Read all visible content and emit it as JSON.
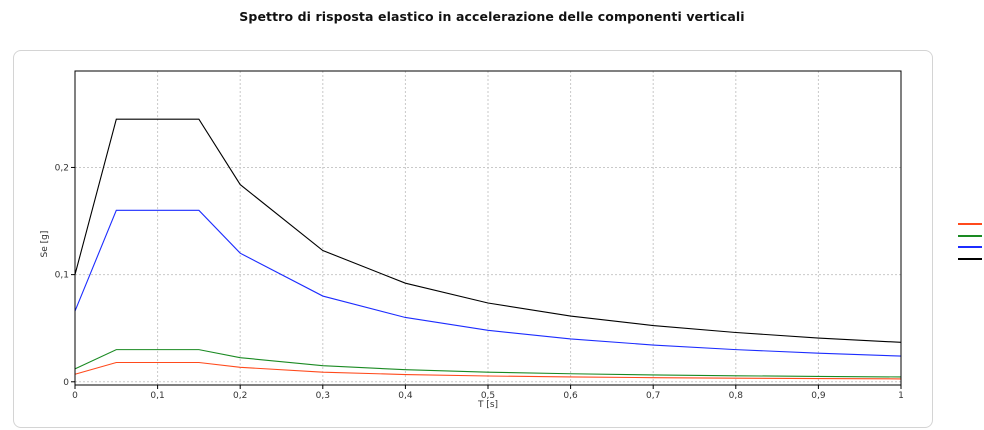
{
  "title": "Spettro di risposta elastico in accelerazione delle componenti verticali",
  "legend": [
    {
      "label": "",
      "color": "#ff4a1c"
    },
    {
      "label": "",
      "color": "#1a8a22"
    },
    {
      "label": "",
      "color": "#1c2cff"
    },
    {
      "label": "",
      "color": "#000000"
    }
  ],
  "chart_data": {
    "type": "line",
    "title": "Spettro di risposta elastico in accelerazione delle componenti verticali",
    "xlabel": "T [s]",
    "ylabel": "Se [g]",
    "xlim": [
      0,
      1
    ],
    "ylim": [
      -0.003,
      0.29
    ],
    "grid": true,
    "legend_position": "right",
    "x_ticks": [
      0,
      0.1,
      0.2,
      0.3,
      0.4,
      0.5,
      0.6,
      0.7,
      0.8,
      0.9,
      1
    ],
    "x_tick_labels": [
      "0",
      "0,1",
      "0,2",
      "0,3",
      "0,4",
      "0,5",
      "0,6",
      "0,7",
      "0,8",
      "0,9",
      "1"
    ],
    "y_ticks": [
      0,
      0.1,
      0.2
    ],
    "y_tick_labels": [
      "0",
      "0,1",
      "0,2"
    ],
    "series": [
      {
        "color": "#ff4a1c",
        "points": [
          [
            0,
            0.007
          ],
          [
            0.05,
            0.018
          ],
          [
            0.15,
            0.018
          ],
          [
            0.2,
            0.0135
          ],
          [
            0.3,
            0.009
          ],
          [
            0.4,
            0.00675
          ],
          [
            0.5,
            0.0054
          ],
          [
            0.6,
            0.0045
          ],
          [
            0.7,
            0.00386
          ],
          [
            0.8,
            0.0034
          ],
          [
            0.9,
            0.003
          ],
          [
            1.0,
            0.0027
          ]
        ]
      },
      {
        "color": "#1a8a22",
        "points": [
          [
            0,
            0.012
          ],
          [
            0.05,
            0.03
          ],
          [
            0.15,
            0.03
          ],
          [
            0.2,
            0.0225
          ],
          [
            0.3,
            0.015
          ],
          [
            0.4,
            0.01125
          ],
          [
            0.5,
            0.009
          ],
          [
            0.6,
            0.0075
          ],
          [
            0.7,
            0.0064
          ],
          [
            0.8,
            0.0056
          ],
          [
            0.9,
            0.005
          ],
          [
            1.0,
            0.0045
          ]
        ]
      },
      {
        "color": "#1c2cff",
        "points": [
          [
            0,
            0.066
          ],
          [
            0.05,
            0.16
          ],
          [
            0.15,
            0.16
          ],
          [
            0.2,
            0.12
          ],
          [
            0.3,
            0.08
          ],
          [
            0.4,
            0.06
          ],
          [
            0.5,
            0.048
          ],
          [
            0.6,
            0.04
          ],
          [
            0.7,
            0.0343
          ],
          [
            0.8,
            0.03
          ],
          [
            0.9,
            0.0267
          ],
          [
            1.0,
            0.024
          ]
        ]
      },
      {
        "color": "#000000",
        "points": [
          [
            0,
            0.1
          ],
          [
            0.05,
            0.245
          ],
          [
            0.15,
            0.245
          ],
          [
            0.2,
            0.184
          ],
          [
            0.3,
            0.1225
          ],
          [
            0.4,
            0.092
          ],
          [
            0.5,
            0.0735
          ],
          [
            0.6,
            0.0613
          ],
          [
            0.7,
            0.0525
          ],
          [
            0.8,
            0.046
          ],
          [
            0.9,
            0.0408
          ],
          [
            1.0,
            0.0368
          ]
        ]
      }
    ]
  }
}
